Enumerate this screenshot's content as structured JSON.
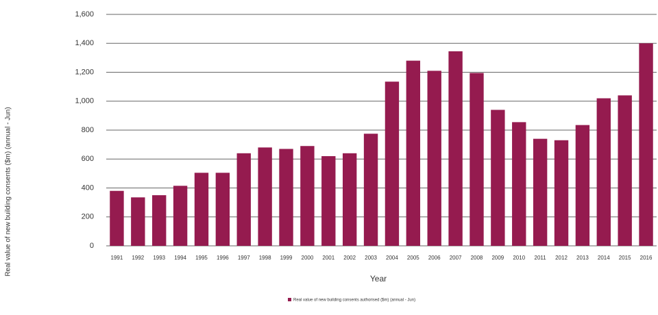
{
  "chart_data": {
    "type": "bar",
    "y_label": "Real value of new building consents ($m) (annual - Jun)",
    "x_label": "Year",
    "legend_label": "Real value of new building consents authorised ($m) (annual - Jun)",
    "categories": [
      "1991",
      "1992",
      "1993",
      "1994",
      "1995",
      "1996",
      "1997",
      "1998",
      "1999",
      "2000",
      "2001",
      "2002",
      "2003",
      "2004",
      "2005",
      "2006",
      "2007",
      "2008",
      "2009",
      "2010",
      "2011",
      "2012",
      "2013",
      "2014",
      "2015",
      "2016"
    ],
    "values": [
      380,
      335,
      350,
      415,
      505,
      505,
      640,
      680,
      670,
      690,
      620,
      640,
      775,
      1135,
      1280,
      1210,
      1345,
      1195,
      940,
      855,
      740,
      730,
      835,
      1020,
      1040,
      1400
    ],
    "color": "#951b4f",
    "ylim": [
      0,
      1600
    ],
    "yticks": [
      0,
      200,
      400,
      600,
      800,
      {
        "value": 1000,
        "label": "1,000"
      },
      {
        "value": 1200,
        "label": "1,200"
      },
      {
        "value": 1400,
        "label": "1,400"
      },
      {
        "value": 1600,
        "label": "1,600"
      }
    ],
    "grid": true
  }
}
